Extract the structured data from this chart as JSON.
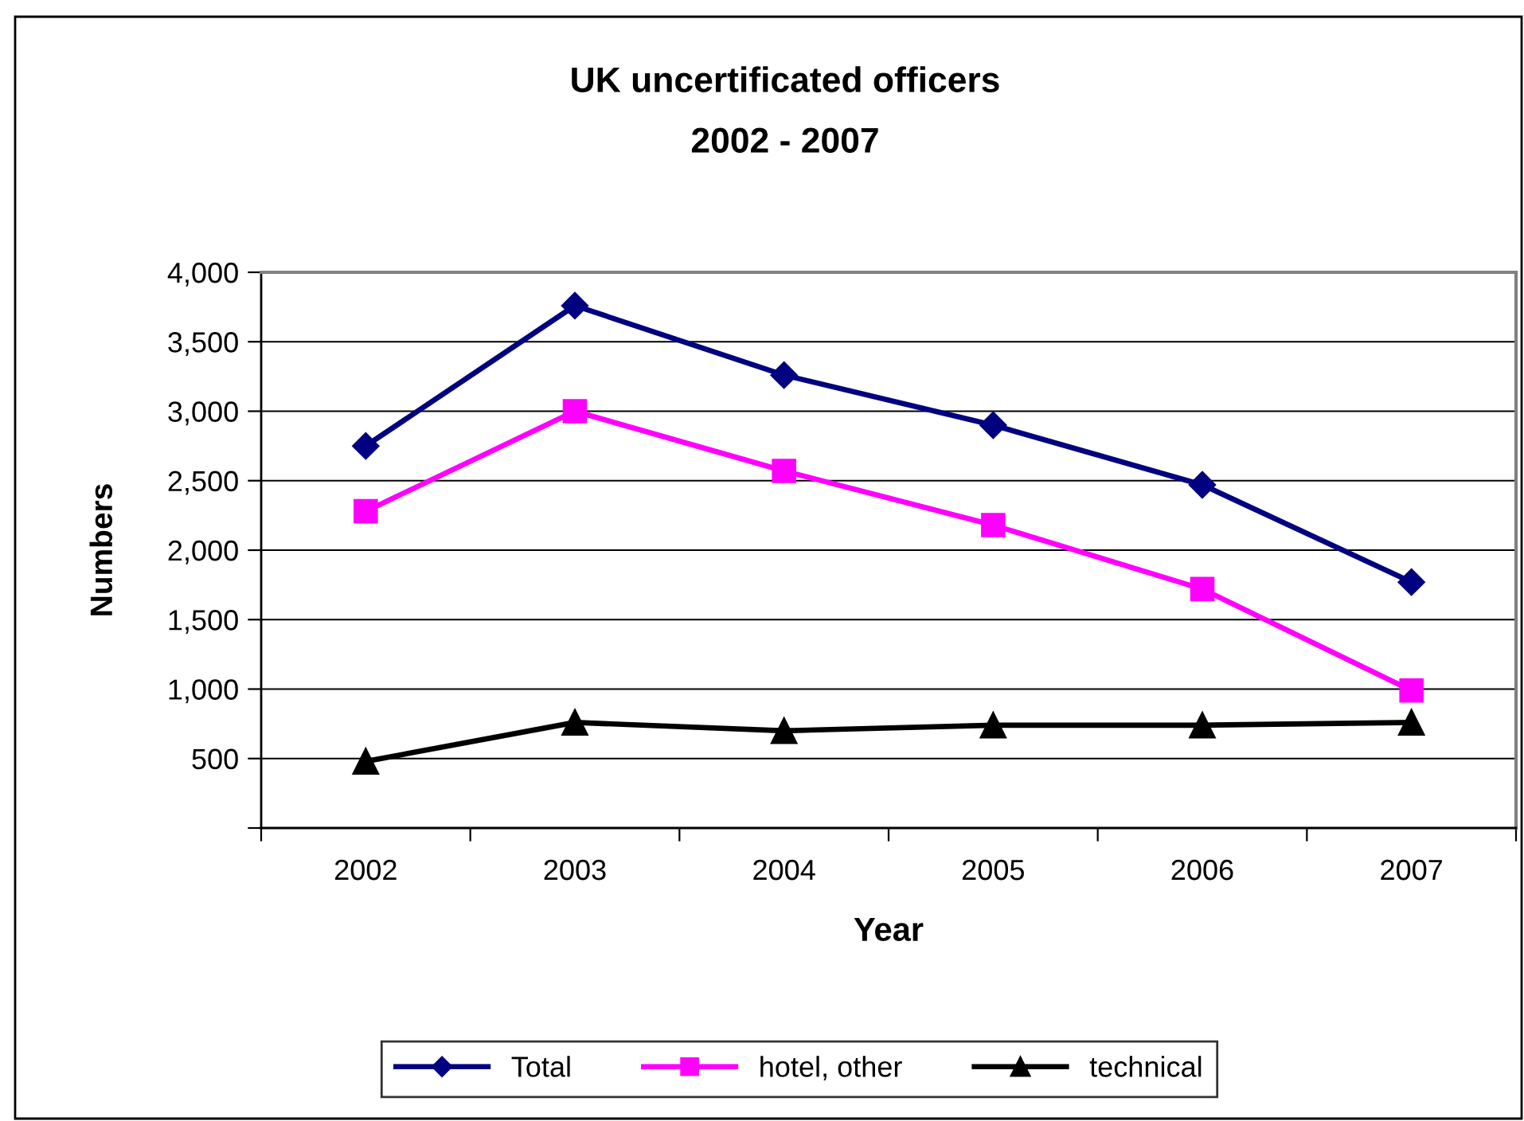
{
  "chart_data": {
    "type": "line",
    "title": "UK uncertificated officers",
    "subtitle": "2002 - 2007",
    "xlabel": "Year",
    "ylabel": "Numbers",
    "categories": [
      "2002",
      "2003",
      "2004",
      "2005",
      "2006",
      "2007"
    ],
    "series": [
      {
        "name": "Total",
        "color": "#000080",
        "marker": "diamond",
        "values": [
          2750,
          3760,
          3260,
          2900,
          2470,
          1770
        ]
      },
      {
        "name": "hotel, other",
        "color": "#ff00ff",
        "marker": "square",
        "values": [
          2280,
          3000,
          2570,
          2180,
          1720,
          990
        ]
      },
      {
        "name": "technical",
        "color": "#000000",
        "marker": "triangle",
        "values": [
          480,
          760,
          700,
          740,
          740,
          760
        ]
      }
    ],
    "ylim": [
      0,
      4000
    ],
    "yticks": [
      {
        "value": 0,
        "label": null
      },
      500,
      {
        "value": 1000,
        "label": "1,000"
      },
      {
        "value": 1500,
        "label": "1,500"
      },
      {
        "value": 2000,
        "label": "2,000"
      },
      {
        "value": 2500,
        "label": "2,500"
      },
      {
        "value": 3000,
        "label": "3,000"
      },
      {
        "value": 3500,
        "label": "3,500"
      },
      {
        "value": 4000,
        "label": "4,000"
      }
    ],
    "grid": "y",
    "legend": "bottom",
    "line_style": "solid"
  }
}
